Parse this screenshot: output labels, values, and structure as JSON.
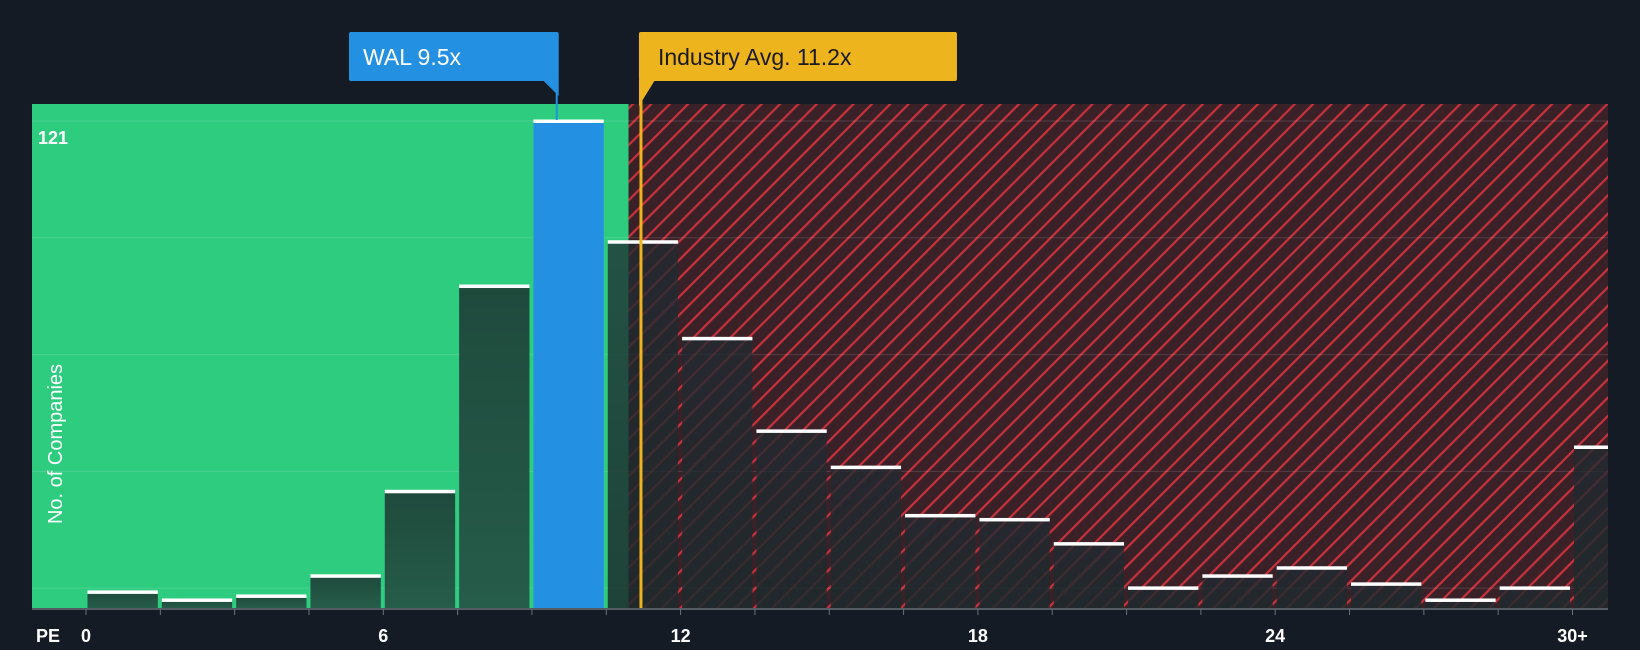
{
  "chart_data": {
    "type": "bar",
    "title": "",
    "xlabel": "PE",
    "ylabel": "No. of Companies",
    "bin_width": 1.5,
    "x_range": [
      0,
      30
    ],
    "ylim": [
      0,
      121
    ],
    "y_max_label": "121",
    "x_ticks": [
      {
        "value": 0,
        "label": "0"
      },
      {
        "value": 6,
        "label": "6"
      },
      {
        "value": 12,
        "label": "12"
      },
      {
        "value": 18,
        "label": "18"
      },
      {
        "value": 24,
        "label": "24"
      },
      {
        "value": 30,
        "label": "30+"
      }
    ],
    "bins": [
      {
        "start": 0,
        "value": 4
      },
      {
        "start": 1.5,
        "value": 2
      },
      {
        "start": 3,
        "value": 3
      },
      {
        "start": 4.5,
        "value": 8
      },
      {
        "start": 6,
        "value": 29
      },
      {
        "start": 7.5,
        "value": 80
      },
      {
        "start": 9,
        "value": 121
      },
      {
        "start": 10.5,
        "value": 91
      },
      {
        "start": 12,
        "value": 67
      },
      {
        "start": 13.5,
        "value": 44
      },
      {
        "start": 15,
        "value": 35
      },
      {
        "start": 16.5,
        "value": 23
      },
      {
        "start": 18,
        "value": 22
      },
      {
        "start": 19.5,
        "value": 16
      },
      {
        "start": 21,
        "value": 5
      },
      {
        "start": 22.5,
        "value": 8
      },
      {
        "start": 24,
        "value": 10
      },
      {
        "start": 25.5,
        "value": 6
      },
      {
        "start": 27,
        "value": 2
      },
      {
        "start": 28.5,
        "value": 5
      },
      {
        "start": 30,
        "value": 40
      }
    ],
    "company": {
      "label": "WAL 9.5x",
      "value": 9.5
    },
    "industry": {
      "label": "Industry Avg. 11.2x",
      "value": 11.2
    },
    "fair_zone_end": 10.95
  },
  "colors": {
    "background": "#151b24",
    "fair_zone": "#2ecc7f",
    "over_zone": "#3a2128",
    "hatch": "#c8323c",
    "company_bar": "#2490e2",
    "company_callout": "#2490e2",
    "industry": "#eeb41e",
    "bar_top": "#ffffff"
  }
}
